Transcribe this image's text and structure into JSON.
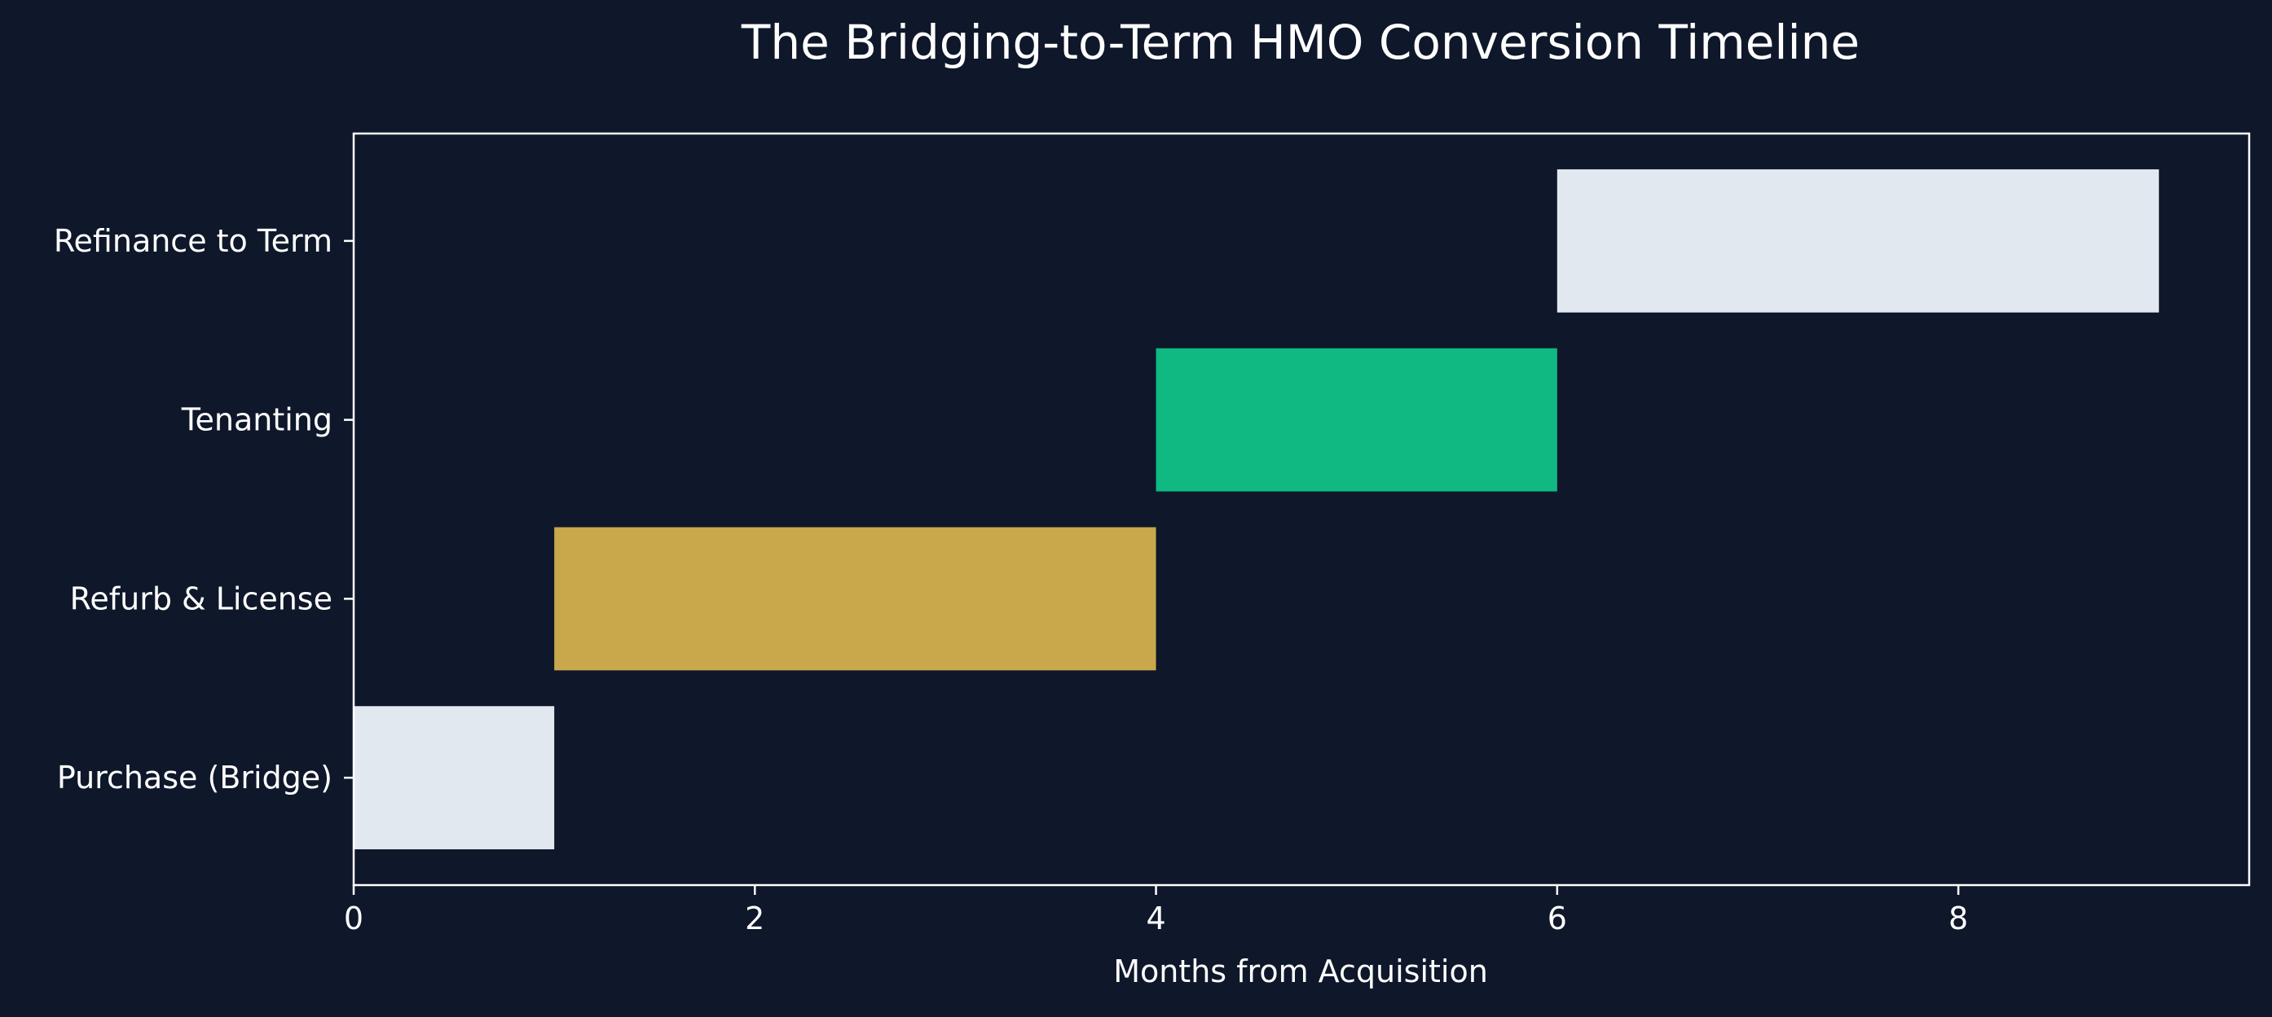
{
  "chart_data": {
    "type": "bar",
    "orientation": "horizontal",
    "title": "The Bridging-to-Term HMO Conversion Timeline",
    "xlabel": "Months from Acquisition",
    "ylabel": "",
    "xlim": [
      0,
      9.45
    ],
    "xticks": [
      0,
      2,
      4,
      6,
      8
    ],
    "grid": false,
    "categories": [
      "Purchase (Bridge)",
      "Refurb & License",
      "Tenanting",
      "Refinance to Term"
    ],
    "tasks": [
      {
        "label": "Purchase (Bridge)",
        "start": 0,
        "end": 1,
        "color": "#e2e8f0"
      },
      {
        "label": "Refurb & License",
        "start": 1,
        "end": 4,
        "color": "#c8a84b"
      },
      {
        "label": "Tenanting",
        "start": 4,
        "end": 6,
        "color": "#10b981"
      },
      {
        "label": "Refinance to Term",
        "start": 6,
        "end": 9,
        "color": "#e2e8f0"
      }
    ],
    "colors": {
      "background": "#0f172a",
      "text": "#ffffff",
      "axis": "#ffffff"
    }
  }
}
